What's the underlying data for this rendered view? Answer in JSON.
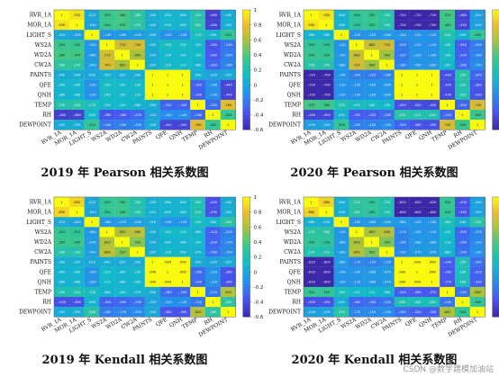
{
  "watermark": "CSDN @数学建模加油站",
  "chart_data": [
    {
      "type": "heatmap",
      "title": "2019 年 Pearson 相关系数图",
      "variables": [
        "RVR_1A",
        "MOR_1A",
        "LIGHT_S",
        "WS2A",
        "WD2A",
        "CW2A",
        "PAINTS",
        "QFE",
        "QNH",
        "TEMP",
        "RH",
        "DEWPOINT"
      ],
      "colorbar": {
        "min": -0.6,
        "max": 1,
        "ticks": [
          1,
          0.8,
          0.6,
          0.4,
          0.2,
          0,
          -0.2,
          -0.4,
          -0.6
        ]
      },
      "matrix": [
        [
          1,
          0.93,
          0.01,
          0.35,
          0.38,
          0.28,
          0.04,
          0.09,
          0.08,
          0.23,
          -0.48,
          0.04
        ],
        [
          0.93,
          1,
          -0.03,
          0.34,
          0.37,
          0.27,
          0.04,
          0.09,
          0.08,
          0.24,
          -0.46,
          0.05
        ],
        [
          0.01,
          -0.03,
          1,
          -0.1,
          -0.08,
          -0.05,
          0,
          -0.12,
          -0.12,
          0.17,
          0.09,
          0.31
        ],
        [
          0.35,
          0.34,
          -0.1,
          1,
          0.71,
          0.74,
          0.05,
          0.15,
          0.14,
          0.1,
          -0.38,
          -0.24
        ],
        [
          0.38,
          0.37,
          -0.08,
          0.71,
          1,
          0.6,
          0.02,
          0.1,
          0.1,
          0.12,
          -0.36,
          -0.2
        ],
        [
          0.28,
          0.27,
          -0.05,
          0.74,
          0.6,
          1,
          0.03,
          0.12,
          0.11,
          0.08,
          -0.3,
          -0.18
        ],
        [
          0.04,
          0.04,
          0,
          0.05,
          0.02,
          0.03,
          1,
          1,
          1,
          0.05,
          -0.02,
          0.02
        ],
        [
          0.09,
          0.09,
          -0.12,
          0.15,
          0.1,
          0.12,
          1,
          1,
          1,
          -0.32,
          -0.14,
          -0.44
        ],
        [
          0.08,
          0.08,
          -0.12,
          0.14,
          0.1,
          0.11,
          1,
          1,
          1,
          -0.33,
          -0.14,
          -0.45
        ],
        [
          0.23,
          0.24,
          0.17,
          0.1,
          0.12,
          0.08,
          0.05,
          -0.32,
          -0.33,
          1,
          -0.28,
          0.76
        ],
        [
          -0.48,
          -0.46,
          0.09,
          -0.38,
          -0.36,
          -0.3,
          -0.02,
          -0.14,
          -0.14,
          -0.28,
          1,
          0.32
        ],
        [
          0.04,
          0.05,
          0.31,
          -0.24,
          -0.2,
          -0.18,
          0.02,
          -0.44,
          -0.45,
          0.76,
          0.32,
          1
        ]
      ]
    },
    {
      "type": "heatmap",
      "title": "2020 年 Pearson 相关系数图",
      "variables": [
        "RVR_1A",
        "MOR_1A",
        "LIGHT_S",
        "WS2A",
        "WD2A",
        "CW2A",
        "PAINTS",
        "QFE",
        "QNH",
        "TEMP",
        "RH",
        "DEWPOINT"
      ],
      "colorbar": {
        "min": -0.6,
        "max": 1,
        "ticks": [
          1,
          0.8,
          0.6,
          0.4,
          0.2,
          0,
          -0.2,
          -0.4,
          -0.6
        ]
      },
      "matrix": [
        [
          1,
          0.93,
          0.08,
          0.3,
          0.33,
          0.25,
          -0.72,
          -0.72,
          -0.72,
          0.37,
          -0.46,
          -0.05
        ],
        [
          0.93,
          1,
          0.06,
          0.29,
          0.32,
          0.24,
          -0.7,
          -0.7,
          -0.7,
          0.36,
          -0.45,
          -0.04
        ],
        [
          0.08,
          0.06,
          1,
          -0.12,
          -0.1,
          -0.08,
          -0.1,
          -0.12,
          -0.12,
          0.22,
          0.05,
          0.3
        ],
        [
          0.3,
          0.29,
          -0.12,
          1,
          0.68,
          0.72,
          -0.2,
          -0.12,
          -0.13,
          0.15,
          -0.35,
          -0.2
        ],
        [
          0.33,
          0.32,
          -0.1,
          0.68,
          1,
          0.58,
          -0.22,
          -0.1,
          -0.1,
          0.14,
          -0.33,
          -0.18
        ],
        [
          0.25,
          0.24,
          -0.08,
          0.72,
          0.58,
          1,
          -0.18,
          -0.09,
          -0.09,
          0.1,
          -0.28,
          -0.15
        ],
        [
          -0.72,
          -0.7,
          -0.1,
          -0.2,
          -0.22,
          -0.18,
          1,
          1,
          1,
          -0.4,
          0.25,
          -0.3
        ],
        [
          -0.72,
          -0.7,
          -0.12,
          -0.12,
          -0.1,
          -0.09,
          1,
          1,
          1,
          -0.42,
          0.22,
          -0.38
        ],
        [
          -0.72,
          -0.7,
          -0.12,
          -0.13,
          -0.1,
          -0.09,
          1,
          1,
          1,
          -0.43,
          0.22,
          -0.39
        ],
        [
          0.37,
          0.36,
          0.22,
          0.15,
          0.14,
          0.1,
          -0.4,
          -0.42,
          -0.43,
          1,
          -0.3,
          0.73
        ],
        [
          -0.46,
          -0.45,
          0.05,
          -0.35,
          -0.33,
          -0.28,
          0.25,
          0.22,
          0.22,
          -0.3,
          1,
          0.35
        ],
        [
          -0.05,
          -0.04,
          0.3,
          -0.2,
          -0.18,
          -0.15,
          -0.3,
          -0.38,
          -0.39,
          0.73,
          0.35,
          1
        ]
      ]
    },
    {
      "type": "heatmap",
      "title": "2019 年 Kendall 相关系数图",
      "variables": [
        "RVR_1A",
        "MOR_1A",
        "LIGHT_S",
        "WS2A",
        "WD2A",
        "CW2A",
        "PAINTS",
        "QFE",
        "QNH",
        "TEMP",
        "RH",
        "DEWPOINT"
      ],
      "colorbar": {
        "min": -0.6,
        "max": 1,
        "ticks": [
          1,
          0.8,
          0.6,
          0.4,
          0.2,
          0,
          -0.2,
          -0.4,
          -0.6
        ]
      },
      "matrix": [
        [
          1,
          0.89,
          0.02,
          0.32,
          0.35,
          0.24,
          0.05,
          0.08,
          0.08,
          0.2,
          -0.4,
          0.04
        ],
        [
          0.89,
          1,
          -0.02,
          0.31,
          0.34,
          0.23,
          0.05,
          0.08,
          0.08,
          0.21,
          -0.39,
          0.05
        ],
        [
          0.02,
          -0.02,
          1,
          -0.08,
          -0.07,
          -0.04,
          0.01,
          -0.1,
          -0.1,
          0.15,
          0.08,
          0.26
        ],
        [
          0.32,
          0.31,
          -0.08,
          1,
          0.62,
          0.66,
          0.04,
          0.12,
          0.11,
          0.08,
          -0.32,
          -0.2
        ],
        [
          0.35,
          0.34,
          -0.07,
          0.62,
          1,
          0.52,
          0.02,
          0.08,
          0.08,
          0.1,
          -0.3,
          -0.17
        ],
        [
          0.24,
          0.23,
          -0.04,
          0.66,
          0.52,
          1,
          0.03,
          0.1,
          0.09,
          0.07,
          -0.26,
          -0.15
        ],
        [
          0.05,
          0.05,
          0.01,
          0.04,
          0.02,
          0.03,
          1,
          0.99,
          0.99,
          0.04,
          -0.02,
          0.02
        ],
        [
          0.08,
          0.08,
          -0.1,
          0.12,
          0.08,
          0.1,
          0.99,
          1,
          0.99,
          -0.28,
          -0.12,
          -0.38
        ],
        [
          0.08,
          0.08,
          -0.1,
          0.11,
          0.08,
          0.09,
          0.99,
          0.99,
          1,
          -0.29,
          -0.12,
          -0.39
        ],
        [
          0.2,
          0.21,
          0.15,
          0.08,
          0.1,
          0.07,
          0.04,
          -0.28,
          -0.29,
          1,
          -0.22,
          0.62
        ],
        [
          -0.4,
          -0.39,
          0.08,
          -0.32,
          -0.3,
          -0.26,
          -0.02,
          -0.12,
          -0.12,
          -0.22,
          1,
          0.28
        ],
        [
          0.04,
          0.05,
          0.26,
          -0.2,
          -0.17,
          -0.15,
          0.02,
          -0.38,
          -0.39,
          0.62,
          0.28,
          1
        ]
      ]
    },
    {
      "type": "heatmap",
      "title": "2020 年 Kendall 相关系数图",
      "variables": [
        "RVR_1A",
        "MOR_1A",
        "LIGHT_S",
        "WS2A",
        "WD2A",
        "CW2A",
        "PAINTS",
        "QFE",
        "QNH",
        "TEMP",
        "RH",
        "DEWPOINT"
      ],
      "colorbar": {
        "min": -0.6,
        "max": 1,
        "ticks": [
          1,
          0.8,
          0.6,
          0.4,
          0.2,
          0,
          -0.2,
          -0.4,
          -0.6
        ]
      },
      "matrix": [
        [
          1,
          0.88,
          0.06,
          0.27,
          0.3,
          0.22,
          -0.62,
          -0.62,
          -0.62,
          0.32,
          -0.4,
          -0.04
        ],
        [
          0.88,
          1,
          0.05,
          0.26,
          0.29,
          0.21,
          -0.6,
          -0.6,
          -0.6,
          0.31,
          -0.39,
          -0.03
        ],
        [
          0.06,
          0.05,
          1,
          -0.1,
          -0.08,
          -0.06,
          -0.08,
          -0.1,
          -0.1,
          0.18,
          0.04,
          0.25
        ],
        [
          0.27,
          0.26,
          -0.1,
          1,
          0.6,
          0.64,
          -0.17,
          -0.1,
          -0.11,
          0.12,
          -0.3,
          -0.17
        ],
        [
          0.3,
          0.29,
          -0.08,
          0.6,
          1,
          0.5,
          -0.19,
          -0.08,
          -0.08,
          0.11,
          -0.28,
          -0.15
        ],
        [
          0.22,
          0.21,
          -0.06,
          0.64,
          0.5,
          1,
          -0.15,
          -0.07,
          -0.07,
          0.08,
          -0.24,
          -0.13
        ],
        [
          -0.62,
          -0.6,
          -0.08,
          -0.17,
          -0.19,
          -0.15,
          1,
          0.99,
          0.99,
          -0.34,
          0.2,
          -0.26
        ],
        [
          -0.62,
          -0.6,
          -0.1,
          -0.1,
          -0.08,
          -0.07,
          0.99,
          1,
          0.99,
          -0.36,
          0.18,
          -0.32
        ],
        [
          -0.62,
          -0.6,
          -0.1,
          -0.11,
          -0.08,
          -0.07,
          0.99,
          0.99,
          1,
          -0.37,
          0.18,
          -0.33
        ],
        [
          0.32,
          0.31,
          0.18,
          0.12,
          0.11,
          0.08,
          -0.34,
          -0.36,
          -0.37,
          1,
          -0.24,
          0.6
        ],
        [
          -0.4,
          -0.39,
          0.04,
          -0.3,
          -0.28,
          -0.24,
          0.2,
          0.18,
          0.18,
          -0.24,
          1,
          0.3
        ],
        [
          -0.04,
          -0.03,
          0.25,
          -0.17,
          -0.15,
          -0.13,
          -0.26,
          -0.32,
          -0.33,
          0.6,
          0.3,
          1
        ]
      ]
    }
  ]
}
